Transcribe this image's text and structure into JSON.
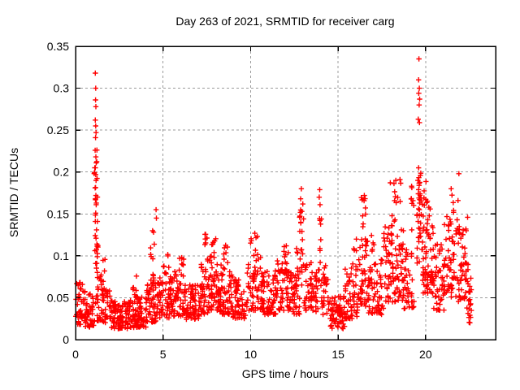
{
  "chart_data": {
    "type": "scatter",
    "title": "Day 263 of 2021, SRMTID for receiver carg",
    "xlabel": "GPS time / hours",
    "ylabel": "SRMTID / TECUs",
    "xlim": [
      0,
      24
    ],
    "ylim": [
      0,
      0.35
    ],
    "xticks": [
      {
        "v": 0,
        "label": "0"
      },
      {
        "v": 5,
        "label": "5"
      },
      {
        "v": 10,
        "label": "10"
      },
      {
        "v": 15,
        "label": "15"
      },
      {
        "v": 20,
        "label": "20"
      }
    ],
    "yticks": [
      {
        "v": 0,
        "label": "0"
      },
      {
        "v": 0.05,
        "label": "0.05"
      },
      {
        "v": 0.1,
        "label": "0.1"
      },
      {
        "v": 0.15,
        "label": "0.15"
      },
      {
        "v": 0.2,
        "label": "0.2"
      },
      {
        "v": 0.25,
        "label": "0.25"
      },
      {
        "v": 0.3,
        "label": "0.3"
      },
      {
        "v": 0.35,
        "label": "0.35"
      }
    ],
    "grid": {
      "show": true,
      "style": "dashed",
      "color": "#9b9b9b"
    },
    "marker": {
      "shape": "plus",
      "color": "#ff0000",
      "size": 7
    },
    "x_data_range": [
      0,
      22.6
    ],
    "peak_points": [
      [
        1.13,
        0.318
      ],
      [
        1.15,
        0.3
      ],
      [
        1.14,
        0.286
      ],
      [
        1.16,
        0.278
      ],
      [
        1.13,
        0.262
      ],
      [
        1.15,
        0.255
      ],
      [
        1.17,
        0.247
      ],
      [
        1.14,
        0.241
      ],
      [
        1.12,
        0.226
      ],
      [
        1.16,
        0.218
      ],
      [
        1.18,
        0.211
      ],
      [
        1.13,
        0.205
      ],
      [
        1.15,
        0.197
      ],
      [
        1.17,
        0.19
      ],
      [
        1.12,
        0.181
      ],
      [
        1.16,
        0.172
      ],
      [
        1.14,
        0.167
      ],
      [
        1.18,
        0.161
      ],
      [
        1.15,
        0.151
      ],
      [
        1.13,
        0.141
      ],
      [
        1.2,
        0.131
      ],
      [
        1.17,
        0.121
      ],
      [
        1.22,
        0.114
      ],
      [
        1.19,
        0.107
      ],
      [
        1.24,
        0.099
      ],
      [
        1.21,
        0.091
      ],
      [
        0.15,
        0.065
      ],
      [
        4.6,
        0.155
      ],
      [
        4.62,
        0.145
      ],
      [
        12.9,
        0.18
      ],
      [
        12.86,
        0.168
      ],
      [
        13.95,
        0.179
      ],
      [
        13.92,
        0.17
      ],
      [
        13.97,
        0.161
      ],
      [
        16.5,
        0.172
      ],
      [
        18.3,
        0.19
      ],
      [
        19.2,
        0.183
      ],
      [
        19.62,
        0.335
      ],
      [
        19.6,
        0.31
      ],
      [
        19.64,
        0.3
      ],
      [
        19.61,
        0.294
      ],
      [
        19.66,
        0.287
      ],
      [
        19.63,
        0.28
      ],
      [
        19.58,
        0.263
      ],
      [
        19.65,
        0.259
      ],
      [
        19.6,
        0.205
      ],
      [
        19.7,
        0.196
      ],
      [
        19.56,
        0.19
      ],
      [
        19.63,
        0.184
      ],
      [
        19.6,
        0.179
      ],
      [
        19.58,
        0.174
      ],
      [
        19.62,
        0.169
      ],
      [
        19.66,
        0.163
      ],
      [
        19.6,
        0.156
      ],
      [
        19.64,
        0.148
      ],
      [
        19.57,
        0.141
      ],
      [
        19.61,
        0.133
      ],
      [
        19.68,
        0.127
      ],
      [
        21.9,
        0.198
      ],
      [
        21.85,
        0.166
      ],
      [
        21.8,
        0.143
      ],
      [
        21.45,
        0.138
      ],
      [
        22.4,
        0.146
      ],
      [
        22.3,
        0.132
      ],
      [
        22.32,
        0.13
      ]
    ],
    "point_clusters": {
      "seed": 263,
      "fields": [
        "x_start",
        "x_end",
        "count",
        "y_min",
        "y_max",
        "low_bias_exponent"
      ],
      "clusters": [
        [
          0.0,
          0.55,
          45,
          0.018,
          0.07,
          1.6
        ],
        [
          0.55,
          1.05,
          40,
          0.015,
          0.055,
          1.6
        ],
        [
          1.05,
          1.3,
          22,
          0.08,
          0.255,
          1.1
        ],
        [
          1.0,
          1.5,
          28,
          0.022,
          0.078,
          1.5
        ],
        [
          1.5,
          2.05,
          40,
          0.02,
          0.062,
          1.5
        ],
        [
          1.45,
          1.75,
          6,
          0.062,
          0.105,
          1.0
        ],
        [
          2.05,
          3.05,
          85,
          0.013,
          0.046,
          1.4
        ],
        [
          3.05,
          4.05,
          85,
          0.014,
          0.052,
          1.4
        ],
        [
          3.25,
          3.55,
          6,
          0.052,
          0.078,
          1.0
        ],
        [
          4.05,
          4.75,
          50,
          0.02,
          0.068,
          1.5
        ],
        [
          4.28,
          4.52,
          13,
          0.06,
          0.132,
          1.1
        ],
        [
          4.75,
          5.45,
          52,
          0.025,
          0.075,
          1.5
        ],
        [
          5.0,
          5.35,
          8,
          0.075,
          0.102,
          1.0
        ],
        [
          5.45,
          6.3,
          62,
          0.028,
          0.085,
          1.5
        ],
        [
          5.85,
          6.2,
          8,
          0.08,
          0.098,
          1.0
        ],
        [
          6.3,
          7.1,
          60,
          0.024,
          0.066,
          1.5
        ],
        [
          7.1,
          7.65,
          45,
          0.03,
          0.09,
          1.4
        ],
        [
          7.35,
          7.6,
          8,
          0.09,
          0.128,
          1.0
        ],
        [
          7.65,
          8.2,
          50,
          0.035,
          0.1,
          1.3
        ],
        [
          7.78,
          8.02,
          6,
          0.1,
          0.122,
          1.0
        ],
        [
          8.2,
          9.0,
          62,
          0.03,
          0.092,
          1.5
        ],
        [
          8.42,
          8.68,
          6,
          0.092,
          0.116,
          1.0
        ],
        [
          9.0,
          9.8,
          56,
          0.025,
          0.072,
          1.5
        ],
        [
          9.8,
          10.7,
          62,
          0.035,
          0.1,
          1.4
        ],
        [
          10.0,
          10.45,
          9,
          0.1,
          0.134,
          1.0
        ],
        [
          10.7,
          11.5,
          60,
          0.03,
          0.082,
          1.5
        ],
        [
          11.5,
          12.3,
          60,
          0.035,
          0.096,
          1.4
        ],
        [
          11.9,
          12.18,
          6,
          0.096,
          0.112,
          1.0
        ],
        [
          12.3,
          12.8,
          38,
          0.03,
          0.08,
          1.4
        ],
        [
          12.55,
          12.72,
          5,
          0.08,
          0.12,
          1.0
        ],
        [
          12.8,
          13.05,
          22,
          0.05,
          0.165,
          1.1
        ],
        [
          13.05,
          13.5,
          32,
          0.035,
          0.095,
          1.4
        ],
        [
          13.5,
          13.85,
          25,
          0.03,
          0.085,
          1.4
        ],
        [
          13.85,
          14.05,
          14,
          0.06,
          0.158,
          1.1
        ],
        [
          14.05,
          14.45,
          26,
          0.03,
          0.09,
          1.4
        ],
        [
          14.45,
          15.4,
          70,
          0.013,
          0.052,
          1.5
        ],
        [
          15.4,
          16.15,
          55,
          0.025,
          0.088,
          1.5
        ],
        [
          15.7,
          16.05,
          5,
          0.088,
          0.122,
          1.0
        ],
        [
          16.15,
          16.75,
          46,
          0.04,
          0.122,
          1.2
        ],
        [
          16.3,
          16.62,
          9,
          0.122,
          0.172,
          1.0
        ],
        [
          16.75,
          17.6,
          60,
          0.03,
          0.097,
          1.5
        ],
        [
          16.9,
          17.18,
          5,
          0.097,
          0.126,
          1.0
        ],
        [
          17.6,
          18.75,
          98,
          0.045,
          0.142,
          1.3
        ],
        [
          17.95,
          18.58,
          12,
          0.142,
          0.192,
          1.0
        ],
        [
          18.75,
          19.35,
          40,
          0.035,
          0.112,
          1.4
        ],
        [
          19.15,
          19.32,
          7,
          0.112,
          0.186,
          1.0
        ],
        [
          19.5,
          19.82,
          26,
          0.09,
          0.21,
          1.1
        ],
        [
          19.82,
          20.45,
          62,
          0.055,
          0.156,
          1.2
        ],
        [
          19.9,
          20.22,
          8,
          0.156,
          0.196,
          1.0
        ],
        [
          20.45,
          21.05,
          46,
          0.035,
          0.116,
          1.4
        ],
        [
          21.05,
          21.75,
          50,
          0.05,
          0.147,
          1.3
        ],
        [
          21.3,
          21.62,
          5,
          0.147,
          0.186,
          1.0
        ],
        [
          21.75,
          22.35,
          46,
          0.045,
          0.137,
          1.3
        ],
        [
          22.35,
          22.62,
          24,
          0.02,
          0.092,
          1.3
        ]
      ]
    }
  }
}
